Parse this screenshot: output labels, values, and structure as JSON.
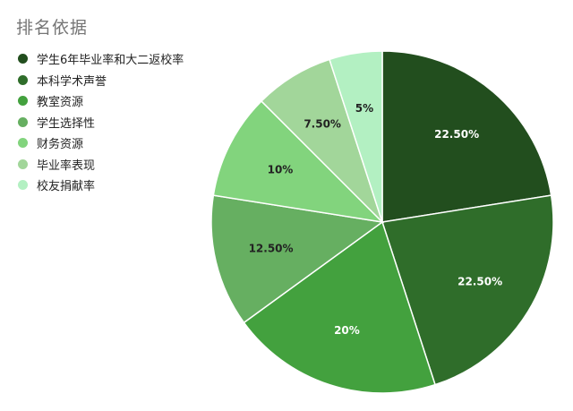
{
  "chart_data": {
    "type": "pie",
    "title": "排名依据",
    "legend_position": "left",
    "categories": [
      "学生6年毕业率和大二返校率",
      "本科学术声誉",
      "教室资源",
      "学生选择性",
      "财务资源",
      "毕业率表现",
      "校友捐献率"
    ],
    "values": [
      22.5,
      22.5,
      20,
      12.5,
      10,
      7.5,
      5
    ],
    "slice_labels": [
      "22.50%",
      "22.50%",
      "20%",
      "12.50%",
      "10%",
      "7.50%",
      "5%"
    ],
    "colors": [
      "#224e1e",
      "#2f6d2a",
      "#43a13e",
      "#66af61",
      "#82d47d",
      "#a2d69a",
      "#b3f0c2"
    ],
    "label_colors": [
      "#ffffff",
      "#ffffff",
      "#ffffff",
      "#222222",
      "#222222",
      "#222222",
      "#222222"
    ]
  }
}
